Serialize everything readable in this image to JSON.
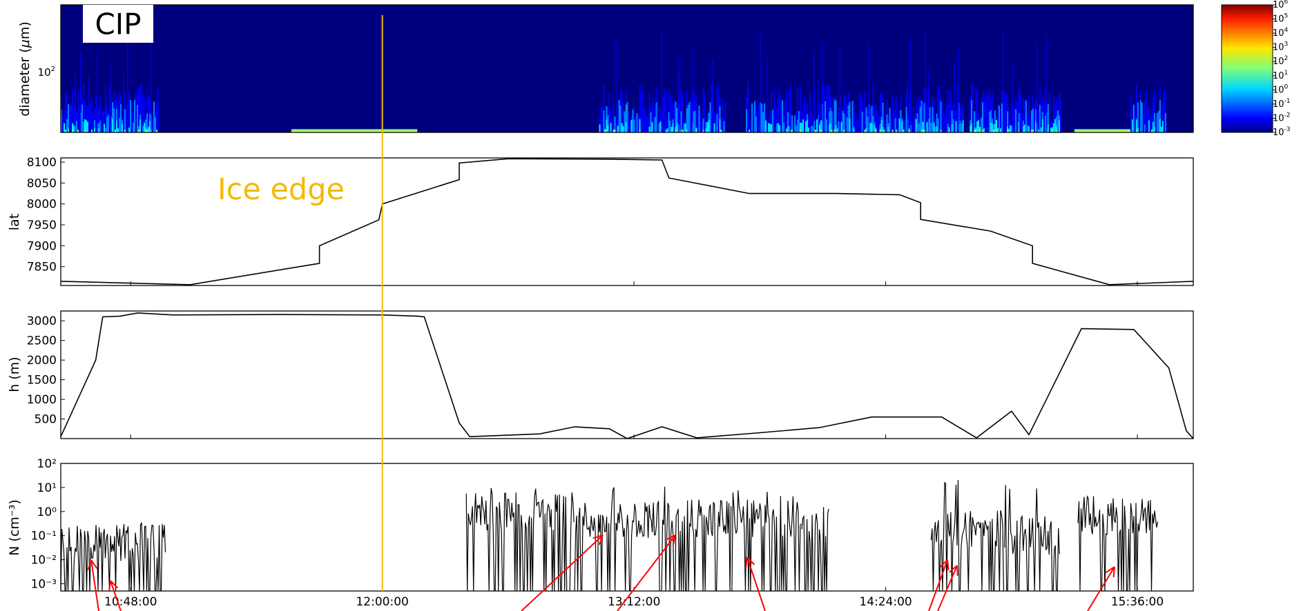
{
  "figure": {
    "ice_edge_label": "Ice edge",
    "ice_edge_color": "#f5b800",
    "ice_edge_time": "12:00:00",
    "time_axis": {
      "start": "10:28:00",
      "end": "15:52:00",
      "ticks": [
        "10:48:00",
        "12:00:00",
        "13:12:00",
        "14:24:00",
        "15:36:00"
      ]
    }
  },
  "colorbar": {
    "tick_labels": [
      {
        "base": "10",
        "exp": "6"
      },
      {
        "base": "10",
        "exp": "5"
      },
      {
        "base": "10",
        "exp": "4"
      },
      {
        "base": "10",
        "exp": "3"
      },
      {
        "base": "10",
        "exp": "2"
      },
      {
        "base": "10",
        "exp": "1"
      },
      {
        "base": "10",
        "exp": "0"
      },
      {
        "base": "10",
        "exp": "-1"
      },
      {
        "base": "10",
        "exp": "-2"
      },
      {
        "base": "10",
        "exp": "-3"
      }
    ],
    "colors": [
      "#00007f",
      "#0000ff",
      "#0080ff",
      "#00e5ff",
      "#7dff7a",
      "#e6ff12",
      "#ffa000",
      "#ff1e00",
      "#800000"
    ]
  },
  "panel_cip": {
    "label": "CIP",
    "ylabel_prefix": "diameter (",
    "ylabel_mu": "μ",
    "ylabel_suffix": "m)",
    "ytick": {
      "base": "10",
      "exp": "2"
    },
    "background_color": "#00007f"
  },
  "arrow_color": "#ff0000",
  "chart_data": [
    {
      "type": "heatmap",
      "panel": "cip",
      "xlabel": "",
      "ylabel": "diameter (μm)",
      "yscale": "log",
      "colorscale": "jet",
      "color_range": [
        0.001,
        1000000
      ],
      "active_intervals": [
        [
          "10:28:00",
          "10:56:00"
        ],
        [
          "13:02:00",
          "13:38:00"
        ],
        [
          "13:44:00",
          "14:08:00"
        ],
        [
          "14:08:00",
          "14:46:00"
        ],
        [
          "14:48:00",
          "15:02:00"
        ],
        [
          "15:02:00",
          "15:14:00"
        ],
        [
          "15:34:00",
          "15:44:00"
        ]
      ],
      "faint_intervals": [
        [
          "11:34:00",
          "12:10:00"
        ],
        [
          "15:18:00",
          "15:34:00"
        ]
      ]
    },
    {
      "type": "line",
      "panel": "lat",
      "xlabel": "",
      "ylabel": "lat",
      "ylim": [
        7805,
        8110
      ],
      "yticks": [
        "8100",
        "8050",
        "8000",
        "7950",
        "7900",
        "7850"
      ],
      "points": [
        [
          "10:28:00",
          7815
        ],
        [
          "11:05:00",
          7807
        ],
        [
          "11:42:00",
          7858
        ],
        [
          "11:42:00",
          7900
        ],
        [
          "11:59:00",
          7962
        ],
        [
          "12:00:00",
          8000
        ],
        [
          "12:22:00",
          8058
        ],
        [
          "12:22:00",
          8098
        ],
        [
          "12:36:00",
          8108
        ],
        [
          "13:05:00",
          8107
        ],
        [
          "13:20:00",
          8105
        ],
        [
          "13:22:00",
          8062
        ],
        [
          "13:45:00",
          8025
        ],
        [
          "14:10:00",
          8025
        ],
        [
          "14:28:00",
          8022
        ],
        [
          "14:34:00",
          8003
        ],
        [
          "14:34:00",
          7963
        ],
        [
          "14:54:00",
          7935
        ],
        [
          "15:06:00",
          7900
        ],
        [
          "15:06:00",
          7858
        ],
        [
          "15:28:00",
          7807
        ],
        [
          "15:52:00",
          7815
        ]
      ]
    },
    {
      "type": "line",
      "panel": "altitude",
      "xlabel": "",
      "ylabel": "h (m)",
      "ylim": [
        0,
        3250
      ],
      "yticks": [
        "3000",
        "2500",
        "2000",
        "1500",
        "1000",
        "500"
      ],
      "points": [
        [
          "10:28:00",
          50
        ],
        [
          "10:38:00",
          2000
        ],
        [
          "10:40:00",
          3100
        ],
        [
          "10:45:00",
          3120
        ],
        [
          "10:50:00",
          3200
        ],
        [
          "11:00:00",
          3150
        ],
        [
          "11:30:00",
          3160
        ],
        [
          "12:00:00",
          3150
        ],
        [
          "12:10:00",
          3120
        ],
        [
          "12:12:00",
          3100
        ],
        [
          "12:22:00",
          400
        ],
        [
          "12:25:00",
          50
        ],
        [
          "12:45:00",
          120
        ],
        [
          "12:55:00",
          300
        ],
        [
          "13:05:00",
          250
        ],
        [
          "13:10:00",
          0
        ],
        [
          "13:20:00",
          300
        ],
        [
          "13:30:00",
          20
        ],
        [
          "13:48:00",
          150
        ],
        [
          "14:05:00",
          280
        ],
        [
          "14:20:00",
          550
        ],
        [
          "14:40:00",
          550
        ],
        [
          "14:50:00",
          20
        ],
        [
          "15:00:00",
          700
        ],
        [
          "15:05:00",
          100
        ],
        [
          "15:20:00",
          2800
        ],
        [
          "15:35:00",
          2780
        ],
        [
          "15:45:00",
          1800
        ],
        [
          "15:50:00",
          200
        ],
        [
          "15:52:00",
          0
        ]
      ]
    },
    {
      "type": "line",
      "panel": "concentration",
      "xlabel": "",
      "ylabel": "N (cm⁻³)",
      "yscale": "log",
      "ylim": [
        0.0005,
        100
      ],
      "yticks": [
        "10²",
        "10¹",
        "10⁰",
        "10⁻¹",
        "10⁻²",
        "10⁻³"
      ],
      "xticks": [
        "10:48:00",
        "12:00:00",
        "13:12:00",
        "14:24:00",
        "15:36:00"
      ],
      "active_intervals": [
        {
          "start": "10:28:00",
          "end": "10:58:00",
          "typical": 0.05,
          "max": 0.4
        },
        {
          "start": "12:24:00",
          "end": "12:55:00",
          "typical": 1.0,
          "max": 12
        },
        {
          "start": "12:55:00",
          "end": "13:40:00",
          "typical": 0.5,
          "max": 12
        },
        {
          "start": "13:40:00",
          "end": "14:00:00",
          "typical": 0.5,
          "max": 8
        },
        {
          "start": "14:00:00",
          "end": "14:08:00",
          "typical": 0.3,
          "max": 6
        },
        {
          "start": "14:37:00",
          "end": "14:58:00",
          "typical": 0.2,
          "max": 25
        },
        {
          "start": "14:58:00",
          "end": "15:14:00",
          "typical": 0.1,
          "max": 15
        },
        {
          "start": "15:19:00",
          "end": "15:42:00",
          "typical": 0.7,
          "max": 1.2
        }
      ]
    }
  ]
}
